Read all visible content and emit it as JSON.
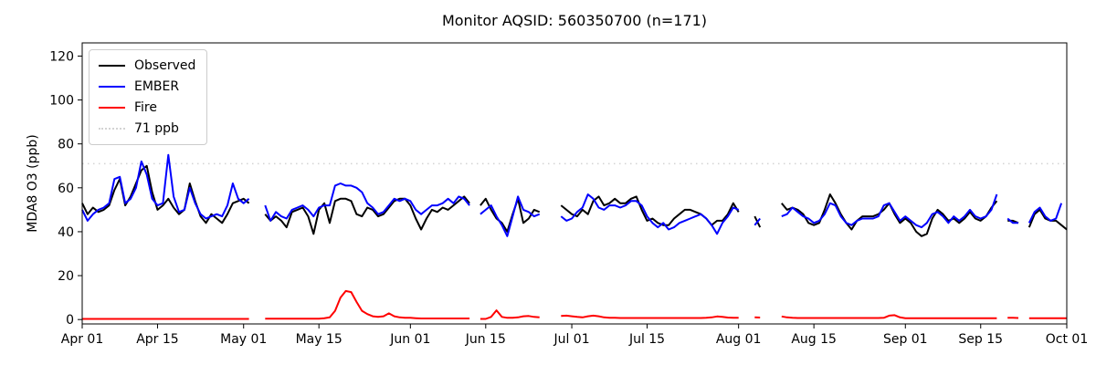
{
  "figure": {
    "background": "#ffffff",
    "axis_color": "#000000"
  },
  "legend": {
    "entries": [
      {
        "label": "Observed",
        "color": "#000000",
        "style": "solid"
      },
      {
        "label": "EMBER",
        "color": "#0000ff",
        "style": "solid"
      },
      {
        "label": "Fire",
        "color": "#ff0000",
        "style": "solid"
      },
      {
        "label": "71 ppb",
        "color": "#d3d3d3",
        "style": "dotted"
      }
    ]
  },
  "chart_data": {
    "type": "line",
    "title": "Monitor AQSID: 560350700 (n=171)",
    "xlabel": "",
    "ylabel": "MDA8 O3 (ppb)",
    "ylim": [
      -2,
      126
    ],
    "yticks": [
      0,
      20,
      40,
      60,
      80,
      100,
      120
    ],
    "x_unit": "day index from Apr 01 (daily data, gaps = missing days)",
    "x_range_days": 183,
    "xticks": [
      {
        "day": 0,
        "label": "Apr 01"
      },
      {
        "day": 14,
        "label": "Apr 15"
      },
      {
        "day": 30,
        "label": "May 01"
      },
      {
        "day": 44,
        "label": "May 15"
      },
      {
        "day": 61,
        "label": "Jun 01"
      },
      {
        "day": 75,
        "label": "Jun 15"
      },
      {
        "day": 91,
        "label": "Jul 01"
      },
      {
        "day": 105,
        "label": "Jul 15"
      },
      {
        "day": 122,
        "label": "Aug 01"
      },
      {
        "day": 136,
        "label": "Aug 15"
      },
      {
        "day": 153,
        "label": "Sep 01"
      },
      {
        "day": 167,
        "label": "Sep 15"
      },
      {
        "day": 183,
        "label": "Oct 01"
      }
    ],
    "threshold": {
      "label": "71 ppb",
      "value": 71,
      "color": "#d3d3d3",
      "style": "dotted"
    },
    "legend_position": "upper left",
    "grid": false,
    "series": [
      {
        "name": "Observed",
        "color": "#000000",
        "values": [
          53,
          48,
          51,
          49,
          50,
          52,
          59,
          64,
          52,
          56,
          62,
          68,
          70,
          58,
          50,
          52,
          55,
          51,
          48,
          50,
          62,
          54,
          47,
          44,
          48,
          46,
          44,
          48,
          53,
          54,
          55,
          53,
          null,
          null,
          48,
          45,
          47,
          45,
          42,
          49,
          50,
          51,
          47,
          39,
          50,
          53,
          44,
          54,
          55,
          55,
          54,
          48,
          47,
          51,
          50,
          47,
          48,
          51,
          54,
          55,
          55,
          52,
          46,
          41,
          46,
          50,
          49,
          51,
          50,
          52,
          54,
          56,
          53,
          null,
          52,
          55,
          50,
          46,
          44,
          40,
          48,
          55,
          44,
          46,
          50,
          49,
          null,
          null,
          null,
          52,
          50,
          48,
          47,
          50,
          48,
          54,
          56,
          52,
          53,
          55,
          53,
          53,
          55,
          56,
          50,
          45,
          46,
          44,
          43,
          43,
          46,
          48,
          50,
          50,
          49,
          48,
          46,
          43,
          45,
          45,
          48,
          53,
          49,
          null,
          null,
          47,
          42,
          null,
          null,
          null,
          53,
          50,
          51,
          50,
          48,
          44,
          43,
          44,
          50,
          57,
          53,
          48,
          44,
          41,
          45,
          47,
          47,
          47,
          48,
          50,
          53,
          48,
          44,
          46,
          44,
          40,
          38,
          39,
          46,
          50,
          48,
          45,
          46,
          44,
          46,
          49,
          46,
          45,
          47,
          51,
          54,
          null,
          45,
          45,
          44,
          null,
          42,
          48,
          50,
          46,
          45,
          45,
          43,
          41
        ]
      },
      {
        "name": "EMBER",
        "color": "#0000ff",
        "values": [
          50,
          45,
          48,
          50,
          51,
          53,
          64,
          65,
          53,
          55,
          60,
          72,
          66,
          55,
          52,
          53,
          75,
          56,
          49,
          50,
          60,
          53,
          48,
          46,
          47,
          48,
          47,
          52,
          62,
          55,
          53,
          55,
          null,
          null,
          52,
          45,
          49,
          47,
          46,
          50,
          51,
          52,
          50,
          47,
          51,
          52,
          52,
          61,
          62,
          61,
          61,
          60,
          58,
          53,
          51,
          48,
          49,
          52,
          55,
          54,
          55,
          54,
          50,
          48,
          50,
          52,
          52,
          53,
          55,
          53,
          56,
          55,
          52,
          null,
          48,
          50,
          52,
          47,
          43,
          38,
          47,
          56,
          50,
          49,
          47,
          48,
          null,
          null,
          null,
          47,
          45,
          46,
          49,
          51,
          57,
          55,
          51,
          50,
          52,
          52,
          51,
          52,
          54,
          54,
          52,
          47,
          44,
          42,
          44,
          41,
          42,
          44,
          45,
          46,
          47,
          48,
          46,
          43,
          39,
          44,
          47,
          51,
          50,
          null,
          null,
          43,
          46,
          null,
          null,
          null,
          47,
          48,
          51,
          49,
          47,
          46,
          44,
          45,
          48,
          53,
          52,
          47,
          44,
          43,
          45,
          46,
          46,
          46,
          47,
          52,
          53,
          49,
          45,
          47,
          45,
          43,
          42,
          44,
          48,
          49,
          47,
          44,
          47,
          45,
          47,
          50,
          47,
          46,
          47,
          50,
          57,
          null,
          46,
          44,
          44,
          null,
          44,
          49,
          51,
          47,
          45,
          46,
          53,
          null
        ]
      },
      {
        "name": "Fire",
        "color": "#ff0000",
        "values": [
          0.3,
          0.3,
          0.3,
          0.3,
          0.3,
          0.3,
          0.3,
          0.3,
          0.3,
          0.3,
          0.3,
          0.3,
          0.3,
          0.3,
          0.3,
          0.3,
          0.3,
          0.3,
          0.3,
          0.3,
          0.3,
          0.3,
          0.3,
          0.3,
          0.3,
          0.3,
          0.3,
          0.3,
          0.3,
          0.3,
          0.3,
          0.3,
          null,
          null,
          0.4,
          0.4,
          0.4,
          0.4,
          0.4,
          0.4,
          0.4,
          0.4,
          0.4,
          0.4,
          0.4,
          0.6,
          1.0,
          4.0,
          10.0,
          13.0,
          12.5,
          8.0,
          4.0,
          2.5,
          1.5,
          1.2,
          1.5,
          2.8,
          1.5,
          1.0,
          0.8,
          0.8,
          0.6,
          0.5,
          0.5,
          0.5,
          0.5,
          0.5,
          0.5,
          0.5,
          0.5,
          0.5,
          0.5,
          null,
          0.3,
          0.3,
          1.2,
          4.2,
          1.2,
          0.8,
          0.8,
          1.0,
          1.5,
          1.6,
          1.2,
          1.0,
          null,
          null,
          null,
          1.6,
          1.8,
          1.5,
          1.2,
          1.0,
          1.5,
          1.8,
          1.5,
          1.0,
          0.8,
          0.8,
          0.7,
          0.7,
          0.7,
          0.7,
          0.7,
          0.7,
          0.7,
          0.7,
          0.7,
          0.7,
          0.7,
          0.7,
          0.7,
          0.7,
          0.7,
          0.7,
          0.8,
          1.0,
          1.4,
          1.2,
          0.9,
          0.8,
          0.8,
          null,
          null,
          1.0,
          0.9,
          null,
          null,
          null,
          1.4,
          1.0,
          0.8,
          0.7,
          0.7,
          0.7,
          0.7,
          0.7,
          0.7,
          0.7,
          0.7,
          0.7,
          0.7,
          0.7,
          0.7,
          0.7,
          0.7,
          0.7,
          0.7,
          0.8,
          1.8,
          2.0,
          1.0,
          0.6,
          0.6,
          0.6,
          0.6,
          0.6,
          0.6,
          0.6,
          0.6,
          0.6,
          0.6,
          0.6,
          0.6,
          0.6,
          0.6,
          0.6,
          0.6,
          0.6,
          0.6,
          null,
          0.8,
          0.8,
          0.7,
          null,
          0.6,
          0.6,
          0.6,
          0.6,
          0.6,
          0.6,
          0.6,
          0.6
        ]
      }
    ]
  }
}
